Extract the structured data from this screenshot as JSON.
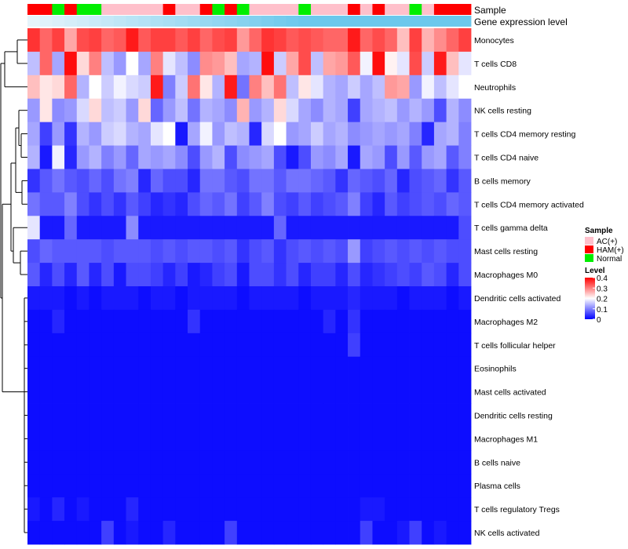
{
  "chart_data": {
    "type": "heatmap",
    "title": "",
    "annotation_rows": [
      "Sample",
      "Gene expression level"
    ],
    "rows": [
      "Monocytes",
      "T cells CD8",
      "Neutrophils",
      "NK cells resting",
      "T cells CD4 memory resting",
      "T cells CD4 naive",
      "B cells memory",
      "T cells CD4 memory activated",
      "T cells gamma delta",
      "Mast cells resting",
      "Macrophages M0",
      "Dendritic cells activated",
      "Macrophages M2",
      "T cells follicular helper",
      "Eosinophils",
      "Mast cells activated",
      "Dendritic cells resting",
      "Macrophages M1",
      "B cells naive",
      "Plasma cells",
      "T cells regulatory  Tregs",
      "NK cells activated"
    ],
    "sample_groups": [
      "HAM(+)",
      "HAM(+)",
      "Normal",
      "HAM(+)",
      "Normal",
      "Normal",
      "AC(+)",
      "AC(+)",
      "AC(+)",
      "AC(+)",
      "AC(+)",
      "HAM(+)",
      "AC(+)",
      "AC(+)",
      "HAM(+)",
      "Normal",
      "HAM(+)",
      "Normal",
      "AC(+)",
      "AC(+)",
      "AC(+)",
      "AC(+)",
      "Normal",
      "AC(+)",
      "AC(+)",
      "AC(+)",
      "HAM(+)",
      "AC(+)",
      "HAM(+)",
      "AC(+)",
      "AC(+)",
      "Normal",
      "AC(+)",
      "HAM(+)",
      "HAM(+)",
      "HAM(+)"
    ],
    "expression_level_gradient": [
      "#e6f4fb",
      "#6cc8ec"
    ],
    "values": [
      [
        0.36,
        0.32,
        0.35,
        0.27,
        0.34,
        0.35,
        0.32,
        0.33,
        0.38,
        0.33,
        0.35,
        0.35,
        0.33,
        0.35,
        0.32,
        0.34,
        0.35,
        0.28,
        0.32,
        0.36,
        0.35,
        0.33,
        0.34,
        0.33,
        0.32,
        0.32,
        0.38,
        0.32,
        0.34,
        0.32,
        0.25,
        0.35,
        0.26,
        0.29,
        0.32,
        0.35
      ],
      [
        0.15,
        0.32,
        0.13,
        0.39,
        0.23,
        0.3,
        0.15,
        0.12,
        0.2,
        0.13,
        0.3,
        0.18,
        0.15,
        0.11,
        0.29,
        0.28,
        0.25,
        0.13,
        0.14,
        0.39,
        0.16,
        0.27,
        0.34,
        0.15,
        0.27,
        0.28,
        0.33,
        0.19,
        0.39,
        0.21,
        0.18,
        0.34,
        0.16,
        0.38,
        0.25,
        0.18
      ],
      [
        0.25,
        0.22,
        0.23,
        0.32,
        0.14,
        0.2,
        0.16,
        0.19,
        0.17,
        0.16,
        0.38,
        0.1,
        0.16,
        0.31,
        0.22,
        0.14,
        0.38,
        0.09,
        0.3,
        0.25,
        0.31,
        0.15,
        0.22,
        0.18,
        0.14,
        0.13,
        0.16,
        0.13,
        0.15,
        0.28,
        0.27,
        0.12,
        0.19,
        0.15,
        0.18,
        0.2
      ],
      [
        0.12,
        0.22,
        0.11,
        0.12,
        0.17,
        0.23,
        0.15,
        0.16,
        0.12,
        0.23,
        0.08,
        0.12,
        0.15,
        0.09,
        0.14,
        0.13,
        0.11,
        0.26,
        0.12,
        0.14,
        0.23,
        0.17,
        0.13,
        0.11,
        0.14,
        0.13,
        0.05,
        0.13,
        0.14,
        0.15,
        0.12,
        0.14,
        0.12,
        0.06,
        0.14,
        0.11
      ],
      [
        0.13,
        0.05,
        0.12,
        0.04,
        0.14,
        0.12,
        0.16,
        0.17,
        0.14,
        0.13,
        0.18,
        0.2,
        0.02,
        0.13,
        0.19,
        0.12,
        0.15,
        0.14,
        0.03,
        0.17,
        0.2,
        0.12,
        0.13,
        0.16,
        0.13,
        0.14,
        0.11,
        0.12,
        0.13,
        0.12,
        0.13,
        0.1,
        0.03,
        0.13,
        0.14,
        0.1
      ],
      [
        0.14,
        0.02,
        0.19,
        0.03,
        0.12,
        0.14,
        0.1,
        0.12,
        0.08,
        0.13,
        0.12,
        0.13,
        0.11,
        0.06,
        0.12,
        0.14,
        0.06,
        0.11,
        0.12,
        0.13,
        0.06,
        0.02,
        0.06,
        0.12,
        0.11,
        0.13,
        0.02,
        0.13,
        0.12,
        0.06,
        0.12,
        0.07,
        0.12,
        0.13,
        0.07,
        0.1
      ],
      [
        0.04,
        0.07,
        0.09,
        0.07,
        0.06,
        0.08,
        0.06,
        0.09,
        0.1,
        0.03,
        0.08,
        0.06,
        0.06,
        0.03,
        0.09,
        0.09,
        0.07,
        0.06,
        0.09,
        0.09,
        0.07,
        0.09,
        0.09,
        0.08,
        0.07,
        0.04,
        0.08,
        0.07,
        0.06,
        0.08,
        0.03,
        0.06,
        0.07,
        0.08,
        0.04,
        0.07
      ],
      [
        0.09,
        0.07,
        0.07,
        0.1,
        0.06,
        0.04,
        0.06,
        0.04,
        0.07,
        0.05,
        0.03,
        0.04,
        0.03,
        0.06,
        0.08,
        0.07,
        0.09,
        0.05,
        0.07,
        0.1,
        0.06,
        0.05,
        0.07,
        0.05,
        0.06,
        0.07,
        0.1,
        0.05,
        0.03,
        0.07,
        0.05,
        0.06,
        0.07,
        0.06,
        0.08,
        0.07
      ],
      [
        0.18,
        0.02,
        0.02,
        0.08,
        0.02,
        0.02,
        0.02,
        0.02,
        0.11,
        0.02,
        0.02,
        0.02,
        0.02,
        0.02,
        0.02,
        0.02,
        0.02,
        0.02,
        0.02,
        0.02,
        0.08,
        0.02,
        0.02,
        0.02,
        0.02,
        0.02,
        0.02,
        0.02,
        0.02,
        0.02,
        0.02,
        0.02,
        0.02,
        0.02,
        0.02,
        0.06
      ],
      [
        0.06,
        0.08,
        0.07,
        0.07,
        0.07,
        0.07,
        0.06,
        0.07,
        0.07,
        0.07,
        0.06,
        0.07,
        0.06,
        0.07,
        0.07,
        0.06,
        0.07,
        0.04,
        0.06,
        0.07,
        0.04,
        0.06,
        0.07,
        0.06,
        0.07,
        0.06,
        0.12,
        0.05,
        0.06,
        0.07,
        0.06,
        0.07,
        0.06,
        0.07,
        0.06,
        0.06
      ],
      [
        0.07,
        0.03,
        0.06,
        0.03,
        0.07,
        0.03,
        0.06,
        0.02,
        0.06,
        0.06,
        0.05,
        0.03,
        0.05,
        0.02,
        0.03,
        0.05,
        0.06,
        0.02,
        0.06,
        0.06,
        0.04,
        0.06,
        0.03,
        0.05,
        0.05,
        0.03,
        0.06,
        0.03,
        0.04,
        0.05,
        0.06,
        0.05,
        0.07,
        0.06,
        0.03,
        0.06
      ],
      [
        0.02,
        0.02,
        0.02,
        0.01,
        0.02,
        0.01,
        0.02,
        0.02,
        0.02,
        0.01,
        0.02,
        0.02,
        0.01,
        0.02,
        0.02,
        0.02,
        0.02,
        0.01,
        0.02,
        0.02,
        0.02,
        0.02,
        0.01,
        0.02,
        0.02,
        0.02,
        0.03,
        0.02,
        0.02,
        0.02,
        0.01,
        0.02,
        0.02,
        0.02,
        0.01,
        0.02
      ],
      [
        0.01,
        0.01,
        0.03,
        0.01,
        0.01,
        0.01,
        0.01,
        0.01,
        0.01,
        0.01,
        0.01,
        0.01,
        0.01,
        0.04,
        0.01,
        0.01,
        0.01,
        0.01,
        0.01,
        0.01,
        0.01,
        0.01,
        0.01,
        0.01,
        0.03,
        0.01,
        0.04,
        0.01,
        0.01,
        0.01,
        0.01,
        0.01,
        0.01,
        0.01,
        0.01,
        0.01
      ],
      [
        0.01,
        0.01,
        0.01,
        0.01,
        0.01,
        0.01,
        0.01,
        0.01,
        0.01,
        0.01,
        0.01,
        0.01,
        0.01,
        0.01,
        0.01,
        0.01,
        0.01,
        0.01,
        0.01,
        0.01,
        0.01,
        0.01,
        0.01,
        0.01,
        0.01,
        0.01,
        0.05,
        0.01,
        0.01,
        0.01,
        0.01,
        0.01,
        0.01,
        0.01,
        0.01,
        0.01
      ],
      [
        0.01,
        0.01,
        0.01,
        0.01,
        0.01,
        0.01,
        0.01,
        0.01,
        0.01,
        0.01,
        0.01,
        0.01,
        0.01,
        0.01,
        0.01,
        0.01,
        0.01,
        0.01,
        0.01,
        0.01,
        0.01,
        0.01,
        0.01,
        0.01,
        0.01,
        0.01,
        0.01,
        0.01,
        0.01,
        0.01,
        0.01,
        0.01,
        0.01,
        0.01,
        0.01,
        0.01
      ],
      [
        0.01,
        0.01,
        0.01,
        0.01,
        0.01,
        0.01,
        0.01,
        0.01,
        0.01,
        0.01,
        0.01,
        0.01,
        0.01,
        0.01,
        0.01,
        0.01,
        0.01,
        0.01,
        0.01,
        0.01,
        0.01,
        0.01,
        0.01,
        0.01,
        0.01,
        0.01,
        0.01,
        0.01,
        0.01,
        0.01,
        0.01,
        0.01,
        0.01,
        0.01,
        0.01,
        0.01
      ],
      [
        0.01,
        0.01,
        0.01,
        0.01,
        0.01,
        0.01,
        0.01,
        0.01,
        0.01,
        0.01,
        0.01,
        0.01,
        0.01,
        0.01,
        0.01,
        0.01,
        0.01,
        0.01,
        0.01,
        0.01,
        0.01,
        0.01,
        0.01,
        0.01,
        0.01,
        0.01,
        0.01,
        0.01,
        0.01,
        0.01,
        0.01,
        0.01,
        0.01,
        0.01,
        0.01,
        0.01
      ],
      [
        0.01,
        0.01,
        0.01,
        0.01,
        0.01,
        0.01,
        0.01,
        0.01,
        0.01,
        0.01,
        0.01,
        0.01,
        0.01,
        0.01,
        0.01,
        0.01,
        0.01,
        0.01,
        0.01,
        0.01,
        0.01,
        0.01,
        0.01,
        0.01,
        0.01,
        0.01,
        0.01,
        0.01,
        0.01,
        0.01,
        0.01,
        0.01,
        0.01,
        0.01,
        0.01,
        0.01
      ],
      [
        0.01,
        0.01,
        0.01,
        0.01,
        0.01,
        0.01,
        0.01,
        0.01,
        0.01,
        0.01,
        0.01,
        0.01,
        0.01,
        0.01,
        0.01,
        0.01,
        0.01,
        0.01,
        0.01,
        0.01,
        0.01,
        0.01,
        0.01,
        0.01,
        0.01,
        0.01,
        0.01,
        0.01,
        0.01,
        0.01,
        0.01,
        0.01,
        0.01,
        0.01,
        0.01,
        0.01
      ],
      [
        0.01,
        0.01,
        0.01,
        0.01,
        0.01,
        0.01,
        0.01,
        0.01,
        0.01,
        0.01,
        0.01,
        0.01,
        0.01,
        0.01,
        0.01,
        0.01,
        0.01,
        0.01,
        0.01,
        0.01,
        0.01,
        0.01,
        0.01,
        0.01,
        0.01,
        0.01,
        0.01,
        0.01,
        0.01,
        0.01,
        0.01,
        0.01,
        0.01,
        0.01,
        0.01,
        0.01
      ],
      [
        0.02,
        0.01,
        0.03,
        0.01,
        0.02,
        0.01,
        0.01,
        0.01,
        0.03,
        0.01,
        0.01,
        0.01,
        0.01,
        0.01,
        0.01,
        0.01,
        0.01,
        0.01,
        0.01,
        0.01,
        0.01,
        0.01,
        0.01,
        0.01,
        0.01,
        0.01,
        0.01,
        0.02,
        0.02,
        0.01,
        0.01,
        0.01,
        0.01,
        0.01,
        0.01,
        0.01
      ],
      [
        0.01,
        0.01,
        0.01,
        0.01,
        0.01,
        0.01,
        0.05,
        0.01,
        0.02,
        0.01,
        0.01,
        0.03,
        0.01,
        0.01,
        0.01,
        0.01,
        0.05,
        0.01,
        0.01,
        0.01,
        0.01,
        0.01,
        0.01,
        0.01,
        0.01,
        0.01,
        0.01,
        0.05,
        0.01,
        0.01,
        0.02,
        0.05,
        0.01,
        0.02,
        0.01,
        0.01
      ]
    ],
    "color_scale": {
      "min": 0,
      "max": 0.4,
      "low_color": "#0000ff",
      "mid_color": "#ffffff",
      "high_color": "#ff0000",
      "midpoint": 0.2
    },
    "legend": {
      "sample_title": "Sample",
      "sample_entries": [
        {
          "label": "AC(+)",
          "color": "#ffc0cb"
        },
        {
          "label": "HAM(+)",
          "color": "#ff0000"
        },
        {
          "label": "Normal",
          "color": "#00ee00"
        }
      ],
      "level_title": "Level",
      "level_ticks": [
        "0.4",
        "0.3",
        "0.2",
        "0.1",
        "0"
      ],
      "level_tick_values": [
        0.4,
        0.3,
        0.2,
        0.1,
        0
      ],
      "placement": "right"
    },
    "dendrogram": "rows"
  }
}
